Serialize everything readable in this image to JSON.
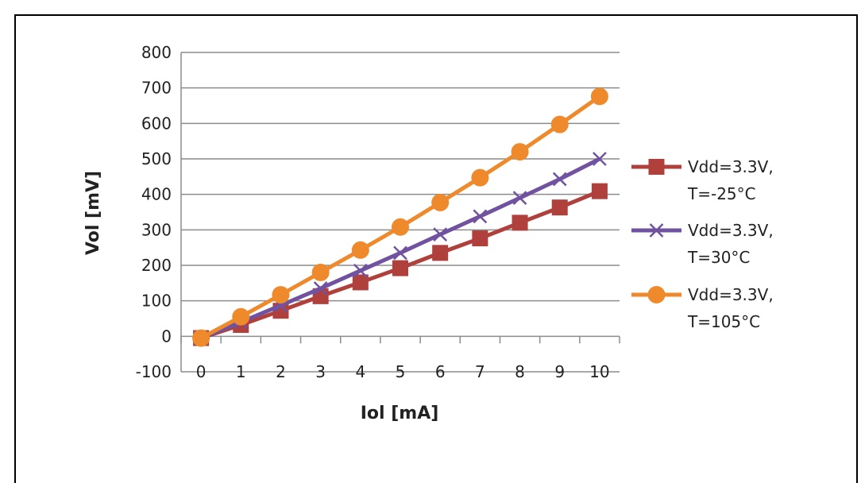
{
  "chart_data": {
    "type": "line",
    "xlabel": "Iol [mA]",
    "ylabel": "Vol [mV]",
    "xlim": [
      0,
      10
    ],
    "ylim": [
      -100,
      800
    ],
    "y_ticks": [
      -100,
      0,
      100,
      200,
      300,
      400,
      500,
      600,
      700,
      800
    ],
    "x": [
      0,
      1,
      2,
      3,
      4,
      5,
      6,
      7,
      8,
      9,
      10
    ],
    "grid": "horizontal",
    "legend_position": "right",
    "series": [
      {
        "name_line1": "Vdd=3.3V,",
        "name_line2": "T=-25°C",
        "color": "#b0403c",
        "marker": "square",
        "values": [
          -5,
          32,
          72,
          113,
          152,
          192,
          235,
          276,
          320,
          363,
          409
        ]
      },
      {
        "name_line1": "Vdd=3.3V,",
        "name_line2": "T=30°C",
        "color": "#7052a0",
        "marker": "x",
        "values": [
          -5,
          40,
          87,
          135,
          185,
          235,
          287,
          338,
          390,
          443,
          500
        ]
      },
      {
        "name_line1": "Vdd=3.3V,",
        "name_line2": "T=105°C",
        "color": "#ee8a2c",
        "marker": "circle",
        "values": [
          -5,
          55,
          117,
          180,
          243,
          308,
          377,
          447,
          520,
          597,
          676
        ]
      }
    ]
  }
}
